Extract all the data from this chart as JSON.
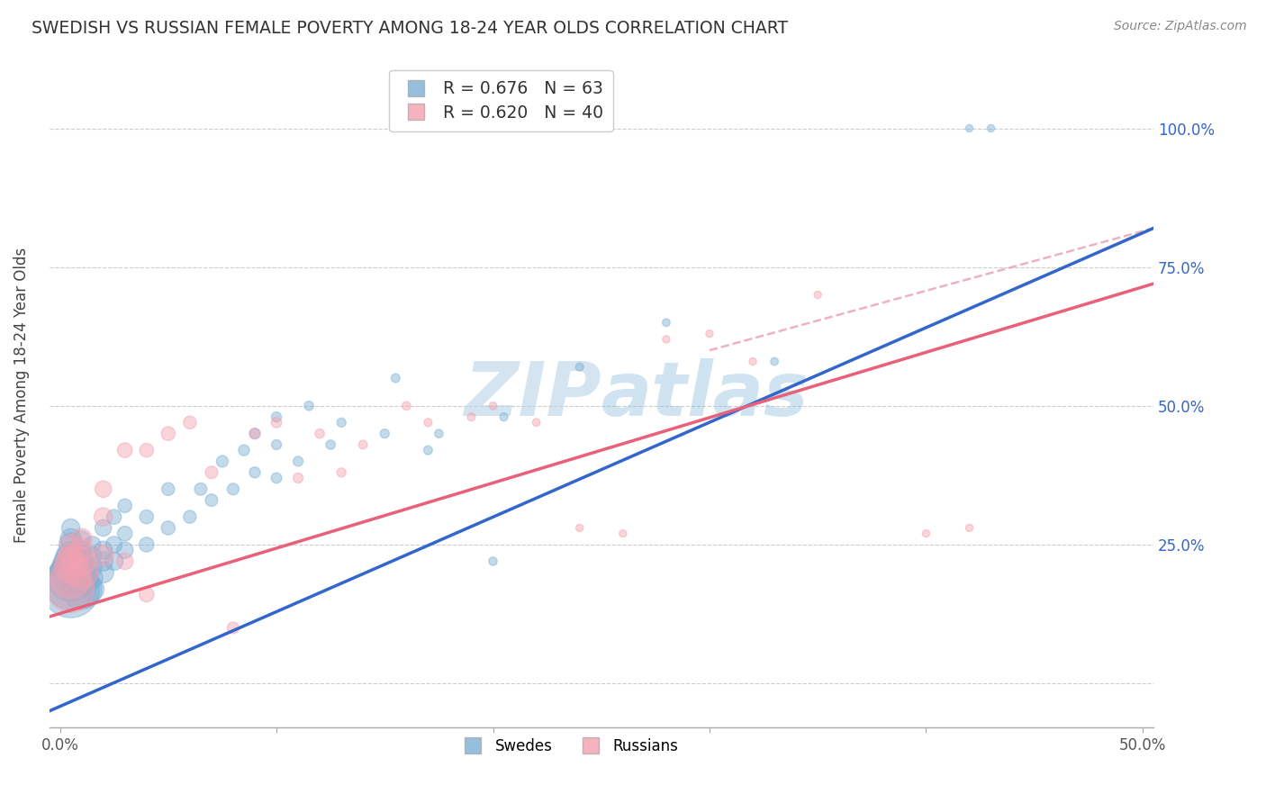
{
  "title": "SWEDISH VS RUSSIAN FEMALE POVERTY AMONG 18-24 YEAR OLDS CORRELATION CHART",
  "source": "Source: ZipAtlas.com",
  "ylabel": "Female Poverty Among 18-24 Year Olds",
  "xlim": [
    -0.005,
    0.505
  ],
  "ylim": [
    -0.08,
    1.12
  ],
  "swedish_R": 0.676,
  "swedish_N": 63,
  "russian_R": 0.62,
  "russian_N": 40,
  "swedish_color": "#7BAFD4",
  "russian_color": "#F4A0B0",
  "swedish_line_color": "#3366CC",
  "russian_line_color": "#E8607A",
  "dashed_color": "#E8A0B0",
  "watermark_text": "ZIPatlas",
  "watermark_color": "#D8E8F0",
  "grid_color": "#CCCCCC",
  "right_tick_color": "#3366CC",
  "swedish_x": [
    0.005,
    0.005,
    0.005,
    0.005,
    0.005,
    0.005,
    0.005,
    0.005,
    0.005,
    0.005,
    0.01,
    0.01,
    0.01,
    0.01,
    0.01,
    0.01,
    0.01,
    0.01,
    0.015,
    0.015,
    0.015,
    0.015,
    0.015,
    0.02,
    0.02,
    0.02,
    0.02,
    0.025,
    0.025,
    0.025,
    0.03,
    0.03,
    0.03,
    0.04,
    0.04,
    0.05,
    0.05,
    0.06,
    0.065,
    0.07,
    0.075,
    0.08,
    0.085,
    0.09,
    0.09,
    0.1,
    0.1,
    0.1,
    0.11,
    0.115,
    0.125,
    0.13,
    0.15,
    0.155,
    0.17,
    0.175,
    0.2,
    0.205,
    0.24,
    0.28,
    0.33,
    0.42,
    0.43
  ],
  "swedish_y": [
    0.17,
    0.18,
    0.19,
    0.2,
    0.21,
    0.22,
    0.23,
    0.25,
    0.26,
    0.28,
    0.17,
    0.19,
    0.2,
    0.21,
    0.22,
    0.23,
    0.24,
    0.26,
    0.17,
    0.19,
    0.21,
    0.23,
    0.25,
    0.2,
    0.22,
    0.24,
    0.28,
    0.22,
    0.25,
    0.3,
    0.24,
    0.27,
    0.32,
    0.25,
    0.3,
    0.28,
    0.35,
    0.3,
    0.35,
    0.33,
    0.4,
    0.35,
    0.42,
    0.38,
    0.45,
    0.37,
    0.43,
    0.48,
    0.4,
    0.5,
    0.43,
    0.47,
    0.45,
    0.55,
    0.42,
    0.45,
    0.22,
    0.48,
    0.57,
    0.65,
    0.58,
    1.0,
    1.0
  ],
  "russian_x": [
    0.005,
    0.005,
    0.005,
    0.005,
    0.005,
    0.005,
    0.01,
    0.01,
    0.01,
    0.01,
    0.02,
    0.02,
    0.02,
    0.03,
    0.03,
    0.04,
    0.04,
    0.05,
    0.06,
    0.07,
    0.08,
    0.09,
    0.1,
    0.11,
    0.12,
    0.13,
    0.14,
    0.16,
    0.17,
    0.19,
    0.2,
    0.22,
    0.24,
    0.26,
    0.28,
    0.3,
    0.32,
    0.35,
    0.4,
    0.42
  ],
  "russian_y": [
    0.17,
    0.19,
    0.21,
    0.22,
    0.23,
    0.25,
    0.2,
    0.22,
    0.24,
    0.26,
    0.23,
    0.3,
    0.35,
    0.22,
    0.42,
    0.16,
    0.42,
    0.45,
    0.47,
    0.38,
    0.1,
    0.45,
    0.47,
    0.37,
    0.45,
    0.38,
    0.43,
    0.5,
    0.47,
    0.48,
    0.5,
    0.47,
    0.28,
    0.27,
    0.62,
    0.63,
    0.58,
    0.7,
    0.27,
    0.28
  ],
  "swedish_sizes": [
    600,
    500,
    400,
    300,
    250,
    200,
    150,
    100,
    80,
    60,
    300,
    200,
    150,
    120,
    100,
    80,
    60,
    50,
    100,
    80,
    70,
    60,
    50,
    80,
    70,
    60,
    50,
    60,
    50,
    40,
    50,
    40,
    35,
    40,
    35,
    35,
    30,
    30,
    28,
    28,
    25,
    25,
    22,
    22,
    20,
    20,
    18,
    18,
    18,
    16,
    16,
    15,
    15,
    14,
    14,
    13,
    13,
    12,
    12,
    11,
    11,
    10,
    10
  ],
  "russian_sizes": [
    400,
    300,
    200,
    150,
    100,
    80,
    200,
    150,
    100,
    80,
    80,
    60,
    50,
    50,
    40,
    40,
    35,
    35,
    30,
    28,
    25,
    22,
    20,
    18,
    16,
    15,
    14,
    13,
    12,
    12,
    11,
    11,
    10,
    10,
    10,
    10,
    10,
    10,
    10,
    10
  ]
}
